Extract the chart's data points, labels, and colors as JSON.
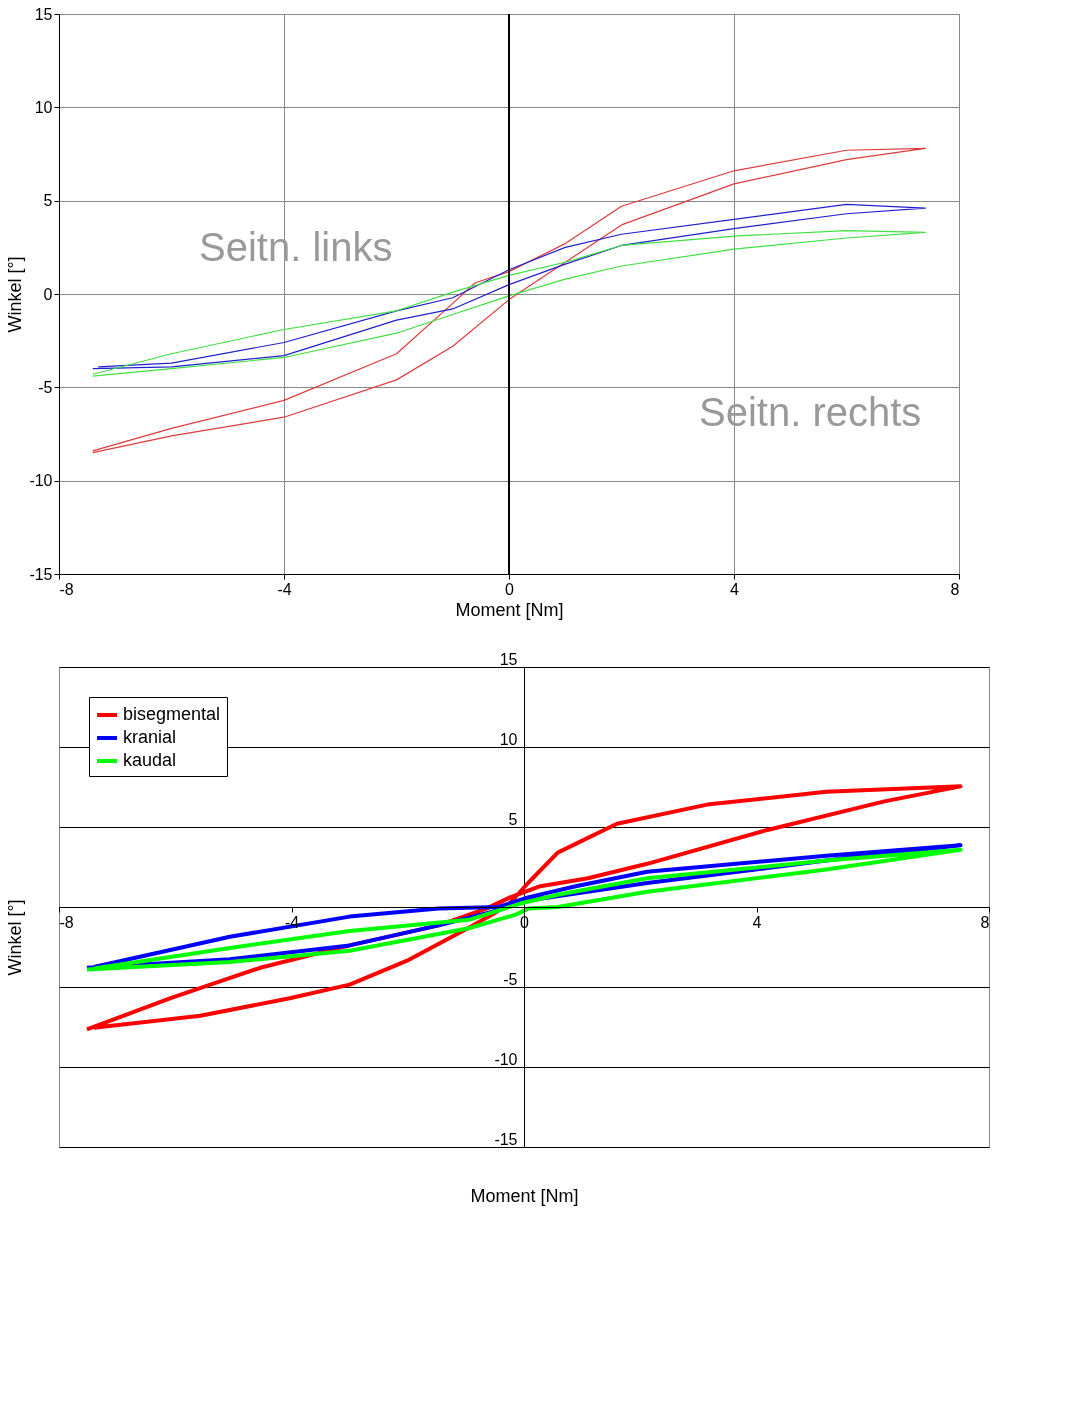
{
  "chart_data": [
    {
      "type": "line",
      "xlabel": "Moment [Nm]",
      "ylabel": "Winkel [°]",
      "xlim": [
        -8,
        8
      ],
      "ylim": [
        -15,
        15
      ],
      "xticks": [
        -8,
        -4,
        0,
        4,
        8
      ],
      "yticks": [
        -15,
        -10,
        -5,
        0,
        5,
        10,
        15
      ],
      "grid": true,
      "legend": false,
      "line_style": "solid",
      "marker": "none",
      "annotations": [
        "Seitn. links",
        "Seitn. rechts"
      ],
      "ref_lines": [
        {
          "axis": "x",
          "value": 0,
          "color": "#000000"
        }
      ],
      "series": [
        {
          "color": "#e03a3a",
          "x": [
            -7.4,
            -6,
            -4,
            -2,
            -1,
            0,
            1,
            2,
            4,
            6,
            7.4,
            6,
            4,
            2,
            1,
            0,
            -0.6,
            -1,
            -2,
            -4,
            -6,
            -7.4
          ],
          "values": [
            -8.5,
            -7.6,
            -6.6,
            -4.6,
            -2.8,
            -0.3,
            1.7,
            3.7,
            5.9,
            7.2,
            7.8,
            7.7,
            6.6,
            4.7,
            2.7,
            1.2,
            0.6,
            -0.5,
            -3.2,
            -5.7,
            -7.2,
            -8.4
          ]
        },
        {
          "color": "#2020d0",
          "x": [
            -7.4,
            -6,
            -4,
            -2,
            -1,
            0,
            1,
            2,
            4,
            6,
            7.4,
            6,
            4,
            2,
            1,
            0,
            -1,
            -2,
            -4,
            -6,
            -7.3
          ],
          "values": [
            -4.0,
            -3.9,
            -3.3,
            -1.4,
            -0.8,
            0.5,
            1.6,
            2.6,
            3.5,
            4.3,
            4.6,
            4.8,
            4.0,
            3.2,
            2.5,
            1.3,
            -0.2,
            -0.9,
            -2.6,
            -3.7,
            -3.9
          ]
        },
        {
          "color": "#40e040",
          "x": [
            -7.4,
            -6,
            -4,
            -2,
            -1,
            0,
            1,
            2,
            4,
            6,
            7.4,
            6,
            4,
            2,
            1,
            0,
            -1,
            -2,
            -4,
            -6,
            -7.4
          ],
          "values": [
            -4.4,
            -4.0,
            -3.4,
            -2.1,
            -1.1,
            -0.1,
            0.8,
            1.5,
            2.4,
            3.0,
            3.3,
            3.4,
            3.1,
            2.6,
            1.7,
            1.0,
            0.1,
            -0.9,
            -1.9,
            -3.2,
            -4.3
          ]
        }
      ]
    },
    {
      "type": "line",
      "xlabel": "Moment [Nm]",
      "ylabel": "Winkel [°]",
      "xlim": [
        -8,
        8
      ],
      "ylim": [
        -15,
        15
      ],
      "xticks": [
        -8,
        -4,
        0,
        4,
        8
      ],
      "yticks": [
        -15,
        -10,
        -5,
        {
          "value": 0,
          "label": null
        },
        5,
        10,
        15
      ],
      "grid": "y",
      "legend": "top left",
      "line_style": "solid",
      "marker": "none",
      "series": [
        {
          "name": "bisegmental",
          "color": "#ff0000",
          "x": [
            -7.52,
            -6.08,
            -4.54,
            -3.0,
            -1.47,
            -0.65,
            -0.24,
            0.28,
            1.1,
            2.12,
            4.17,
            6.2,
            7.51,
            5.2,
            3.15,
            1.6,
            0.58,
            0.07,
            -0.24,
            -0.54,
            -0.95,
            -1.98,
            -3.0,
            -4.03,
            -5.57,
            -7.4
          ],
          "values": [
            -7.65,
            -5.7,
            -3.8,
            -2.4,
            -1.15,
            -0.1,
            0.6,
            1.3,
            1.8,
            2.7,
            4.8,
            6.6,
            7.54,
            7.2,
            6.4,
            5.2,
            3.4,
            1.5,
            0.25,
            -0.45,
            -1.3,
            -3.3,
            -4.85,
            -5.7,
            -6.8,
            -7.55
          ]
        },
        {
          "name": "kranial",
          "color": "#0000ff",
          "x": [
            -7.52,
            -5.06,
            -3.0,
            -1.47,
            -0.54,
            0.07,
            2.12,
            5.2,
            7.51,
            5.2,
            2.12,
            0.89,
            0.07,
            -0.44,
            -1.47,
            -3.0,
            -5.06,
            -7.4
          ],
          "values": [
            -3.8,
            -3.26,
            -2.4,
            -1.15,
            -0.3,
            0.4,
            1.5,
            2.9,
            3.86,
            3.2,
            2.2,
            1.3,
            0.6,
            0,
            -0.1,
            -0.6,
            -1.86,
            -3.75
          ]
        },
        {
          "name": "kaudal",
          "color": "#00ff00",
          "x": [
            -7.52,
            -5.06,
            -3.0,
            -0.95,
            -0.13,
            0.07,
            0.58,
            2.12,
            5.2,
            7.51,
            5.2,
            2.12,
            0.58,
            -0.03,
            -0.95,
            -3.0,
            -5.06,
            -7.4
          ],
          "values": [
            -3.9,
            -3.44,
            -2.74,
            -1.33,
            -0.46,
            -0.1,
            0,
            0.95,
            2.35,
            3.58,
            2.9,
            1.8,
            0.77,
            0.25,
            -0.8,
            -1.5,
            -2.56,
            -3.85
          ]
        }
      ]
    }
  ]
}
